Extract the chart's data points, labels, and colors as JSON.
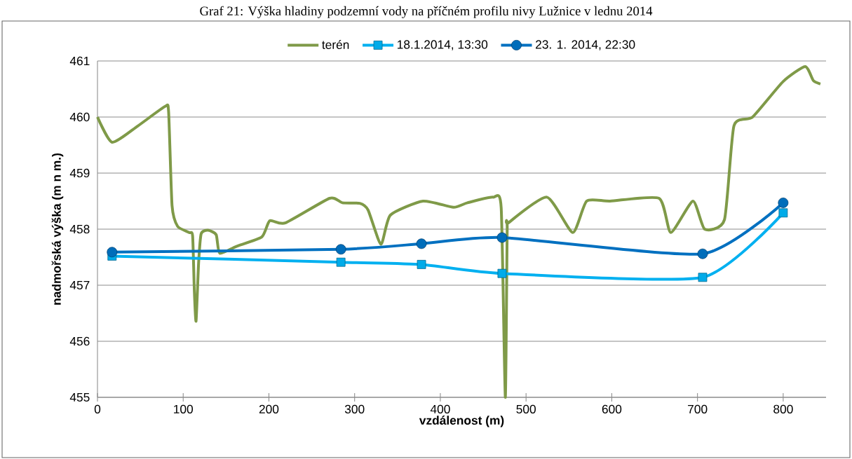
{
  "chart_data": {
    "type": "line",
    "title": "Graf 21: Výška hladiny podzemní vody na příčném profilu nivy Lužnice v lednu 2014",
    "xlabel": "vzdálenost (m)",
    "ylabel": "nadmořská výška (m n m.)",
    "xlim": [
      0,
      850
    ],
    "ylim": [
      455,
      461
    ],
    "xticks": [
      0,
      100,
      200,
      300,
      400,
      500,
      600,
      700,
      800
    ],
    "yticks": [
      455,
      456,
      457,
      458,
      459,
      460,
      461
    ],
    "grid": "y",
    "legend": "top",
    "series": [
      {
        "name": "terén",
        "color": "#7f9a48",
        "marker": "none",
        "x": [
          0,
          17,
          47,
          79,
          83,
          87,
          93.5,
          107,
          111,
          113,
          115,
          118,
          121,
          129,
          138.5,
          142.6,
          161.7,
          191.7,
          201,
          219,
          270.8,
          285.7,
          306,
          315.7,
          330.7,
          341.7,
          379.8,
          415.3,
          431.6,
          461.6,
          471,
          475.8,
          478,
          479.3,
          524.3,
          554.4,
          570.7,
          598,
          655.2,
          668.9,
          694.7,
          708.4,
          731.5,
          742.5,
          764.3,
          799.7,
          825.6,
          835.2,
          843.4
        ],
        "values": [
          460.0,
          459.55,
          459.84,
          460.19,
          460.09,
          458.42,
          458.05,
          457.94,
          457.88,
          456.9,
          456.36,
          457.4,
          457.92,
          457.98,
          457.9,
          457.57,
          457.69,
          457.86,
          458.15,
          458.11,
          458.55,
          458.47,
          458.46,
          458.34,
          457.73,
          458.25,
          458.5,
          458.39,
          458.47,
          458.57,
          458.38,
          455.0,
          458.0,
          458.11,
          458.57,
          457.94,
          458.5,
          458.5,
          458.55,
          457.94,
          458.5,
          458.0,
          458.17,
          459.84,
          460.0,
          460.63,
          460.9,
          460.65,
          460.59
        ]
      },
      {
        "name": "18.1.2014, 13:30",
        "color": "#00b0f0",
        "marker": "square",
        "x": [
          17,
          284,
          378,
          472,
          706,
          800
        ],
        "values": [
          457.52,
          457.41,
          457.37,
          457.21,
          457.14,
          458.29
        ]
      },
      {
        "name": "23. 1. 2014, 22:30",
        "color": "#0070c0",
        "marker": "circle",
        "x": [
          17,
          284,
          378,
          472,
          706,
          800
        ],
        "values": [
          457.59,
          457.64,
          457.74,
          457.85,
          457.56,
          458.47
        ]
      }
    ]
  }
}
